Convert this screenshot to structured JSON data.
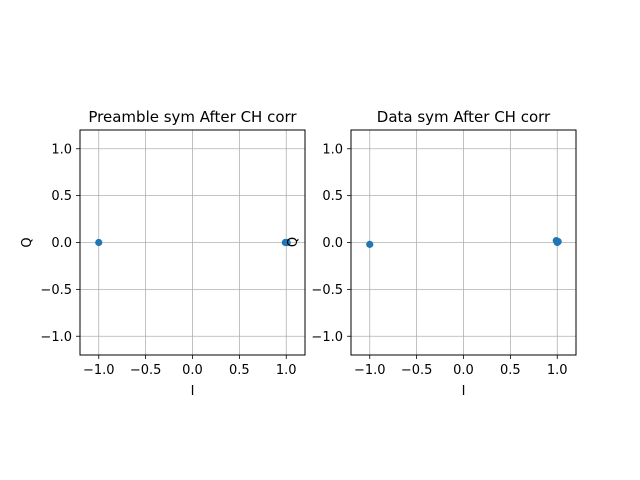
{
  "chart_data": [
    {
      "type": "scatter",
      "title": "Preamble sym After CH corr",
      "xlabel": "I",
      "ylabel": "Q",
      "xlim": [
        -1.2,
        1.2
      ],
      "ylim": [
        -1.2,
        1.2
      ],
      "xticks": [
        -1.0,
        -0.5,
        0.0,
        0.5,
        1.0
      ],
      "xtick_labels": [
        "−1.0",
        "−0.5",
        "0.0",
        "0.5",
        "1.0"
      ],
      "yticks": [
        -1.0,
        -0.5,
        0.0,
        0.5,
        1.0
      ],
      "ytick_labels": [
        "−1.0",
        "−0.5",
        "0.0",
        "0.5",
        "1.0"
      ],
      "grid": true,
      "marker_color": "#1f77b4",
      "points": [
        {
          "x": -1.0,
          "y": 0.0
        },
        {
          "x": 0.99,
          "y": 0.0
        },
        {
          "x": 1.0,
          "y": 0.0
        },
        {
          "x": 1.01,
          "y": 0.0
        }
      ]
    },
    {
      "type": "scatter",
      "title": "Data sym After CH corr",
      "xlabel": "I",
      "ylabel": "",
      "xlim": [
        -1.2,
        1.2
      ],
      "ylim": [
        -1.2,
        1.2
      ],
      "xticks": [
        -1.0,
        -0.5,
        0.0,
        0.5,
        1.0
      ],
      "xtick_labels": [
        "−1.0",
        "−0.5",
        "0.0",
        "0.5",
        "1.0"
      ],
      "yticks": [
        -1.0,
        -0.5,
        0.0,
        0.5,
        1.0
      ],
      "ytick_labels": [
        "−1.0",
        "−0.5",
        "0.0",
        "0.5",
        "1.0"
      ],
      "grid": true,
      "marker_color": "#1f77b4",
      "points": [
        {
          "x": -1.0,
          "y": -0.02
        },
        {
          "x": 0.99,
          "y": 0.02
        },
        {
          "x": 1.01,
          "y": 0.01
        },
        {
          "x": 1.0,
          "y": 0.0
        }
      ]
    }
  ]
}
